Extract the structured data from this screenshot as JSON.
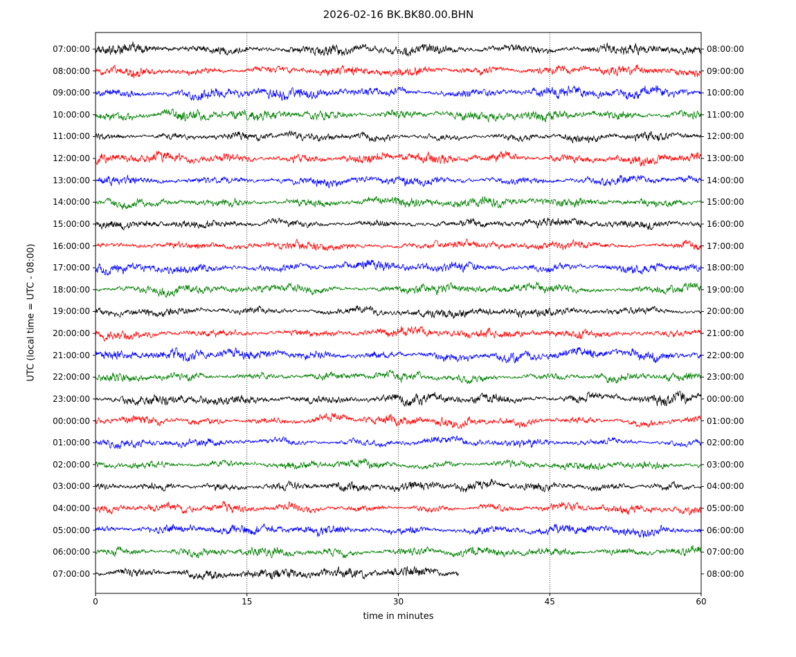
{
  "chart_data": {
    "type": "line",
    "subtype": "helicorder-dayplot",
    "title": "2026-02-16 BK.BK80.00.BHN",
    "xlabel": "time in minutes",
    "ylabel": "UTC (local time = UTC - 08:00)",
    "xlim": [
      0,
      60
    ],
    "x_ticks": [
      0,
      15,
      30,
      45,
      60
    ],
    "grid": {
      "vertical_dotted_at": [
        15,
        30,
        45
      ]
    },
    "legend": "none",
    "color_cycle": [
      "#000000",
      "#ff0000",
      "#0000ff",
      "#008000"
    ],
    "waveform": "continuous seismic background noise, one hour per row; final row is a partial trace ending near minute 36",
    "rows": [
      {
        "utc": "07:00:00",
        "end": "08:00:00",
        "color": "#000000",
        "start_min": 0,
        "duration_min": 60
      },
      {
        "utc": "08:00:00",
        "end": "09:00:00",
        "color": "#ff0000",
        "start_min": 0,
        "duration_min": 60
      },
      {
        "utc": "09:00:00",
        "end": "10:00:00",
        "color": "#0000ff",
        "start_min": 0,
        "duration_min": 60
      },
      {
        "utc": "10:00:00",
        "end": "11:00:00",
        "color": "#008000",
        "start_min": 0,
        "duration_min": 60
      },
      {
        "utc": "11:00:00",
        "end": "12:00:00",
        "color": "#000000",
        "start_min": 0,
        "duration_min": 60
      },
      {
        "utc": "12:00:00",
        "end": "13:00:00",
        "color": "#ff0000",
        "start_min": 0,
        "duration_min": 60
      },
      {
        "utc": "13:00:00",
        "end": "14:00:00",
        "color": "#0000ff",
        "start_min": 0,
        "duration_min": 60
      },
      {
        "utc": "14:00:00",
        "end": "15:00:00",
        "color": "#008000",
        "start_min": 0,
        "duration_min": 60
      },
      {
        "utc": "15:00:00",
        "end": "16:00:00",
        "color": "#000000",
        "start_min": 0,
        "duration_min": 60
      },
      {
        "utc": "16:00:00",
        "end": "17:00:00",
        "color": "#ff0000",
        "start_min": 0,
        "duration_min": 60
      },
      {
        "utc": "17:00:00",
        "end": "18:00:00",
        "color": "#0000ff",
        "start_min": 0,
        "duration_min": 60
      },
      {
        "utc": "18:00:00",
        "end": "19:00:00",
        "color": "#008000",
        "start_min": 0,
        "duration_min": 60
      },
      {
        "utc": "19:00:00",
        "end": "20:00:00",
        "color": "#000000",
        "start_min": 0,
        "duration_min": 60
      },
      {
        "utc": "20:00:00",
        "end": "21:00:00",
        "color": "#ff0000",
        "start_min": 0,
        "duration_min": 60
      },
      {
        "utc": "21:00:00",
        "end": "22:00:00",
        "color": "#0000ff",
        "start_min": 0,
        "duration_min": 60
      },
      {
        "utc": "22:00:00",
        "end": "23:00:00",
        "color": "#008000",
        "start_min": 0,
        "duration_min": 60
      },
      {
        "utc": "23:00:00",
        "end": "00:00:00",
        "color": "#000000",
        "start_min": 0,
        "duration_min": 60
      },
      {
        "utc": "00:00:00",
        "end": "01:00:00",
        "color": "#ff0000",
        "start_min": 0,
        "duration_min": 60
      },
      {
        "utc": "01:00:00",
        "end": "02:00:00",
        "color": "#0000ff",
        "start_min": 0,
        "duration_min": 60
      },
      {
        "utc": "02:00:00",
        "end": "03:00:00",
        "color": "#008000",
        "start_min": 0,
        "duration_min": 60
      },
      {
        "utc": "03:00:00",
        "end": "04:00:00",
        "color": "#000000",
        "start_min": 0,
        "duration_min": 60
      },
      {
        "utc": "04:00:00",
        "end": "05:00:00",
        "color": "#ff0000",
        "start_min": 0,
        "duration_min": 60
      },
      {
        "utc": "05:00:00",
        "end": "06:00:00",
        "color": "#0000ff",
        "start_min": 0,
        "duration_min": 60
      },
      {
        "utc": "06:00:00",
        "end": "07:00:00",
        "color": "#008000",
        "start_min": 0,
        "duration_min": 60
      },
      {
        "utc": "07:00:00",
        "end": "08:00:00",
        "color": "#000000",
        "start_min": 0,
        "duration_min": 36
      }
    ]
  }
}
